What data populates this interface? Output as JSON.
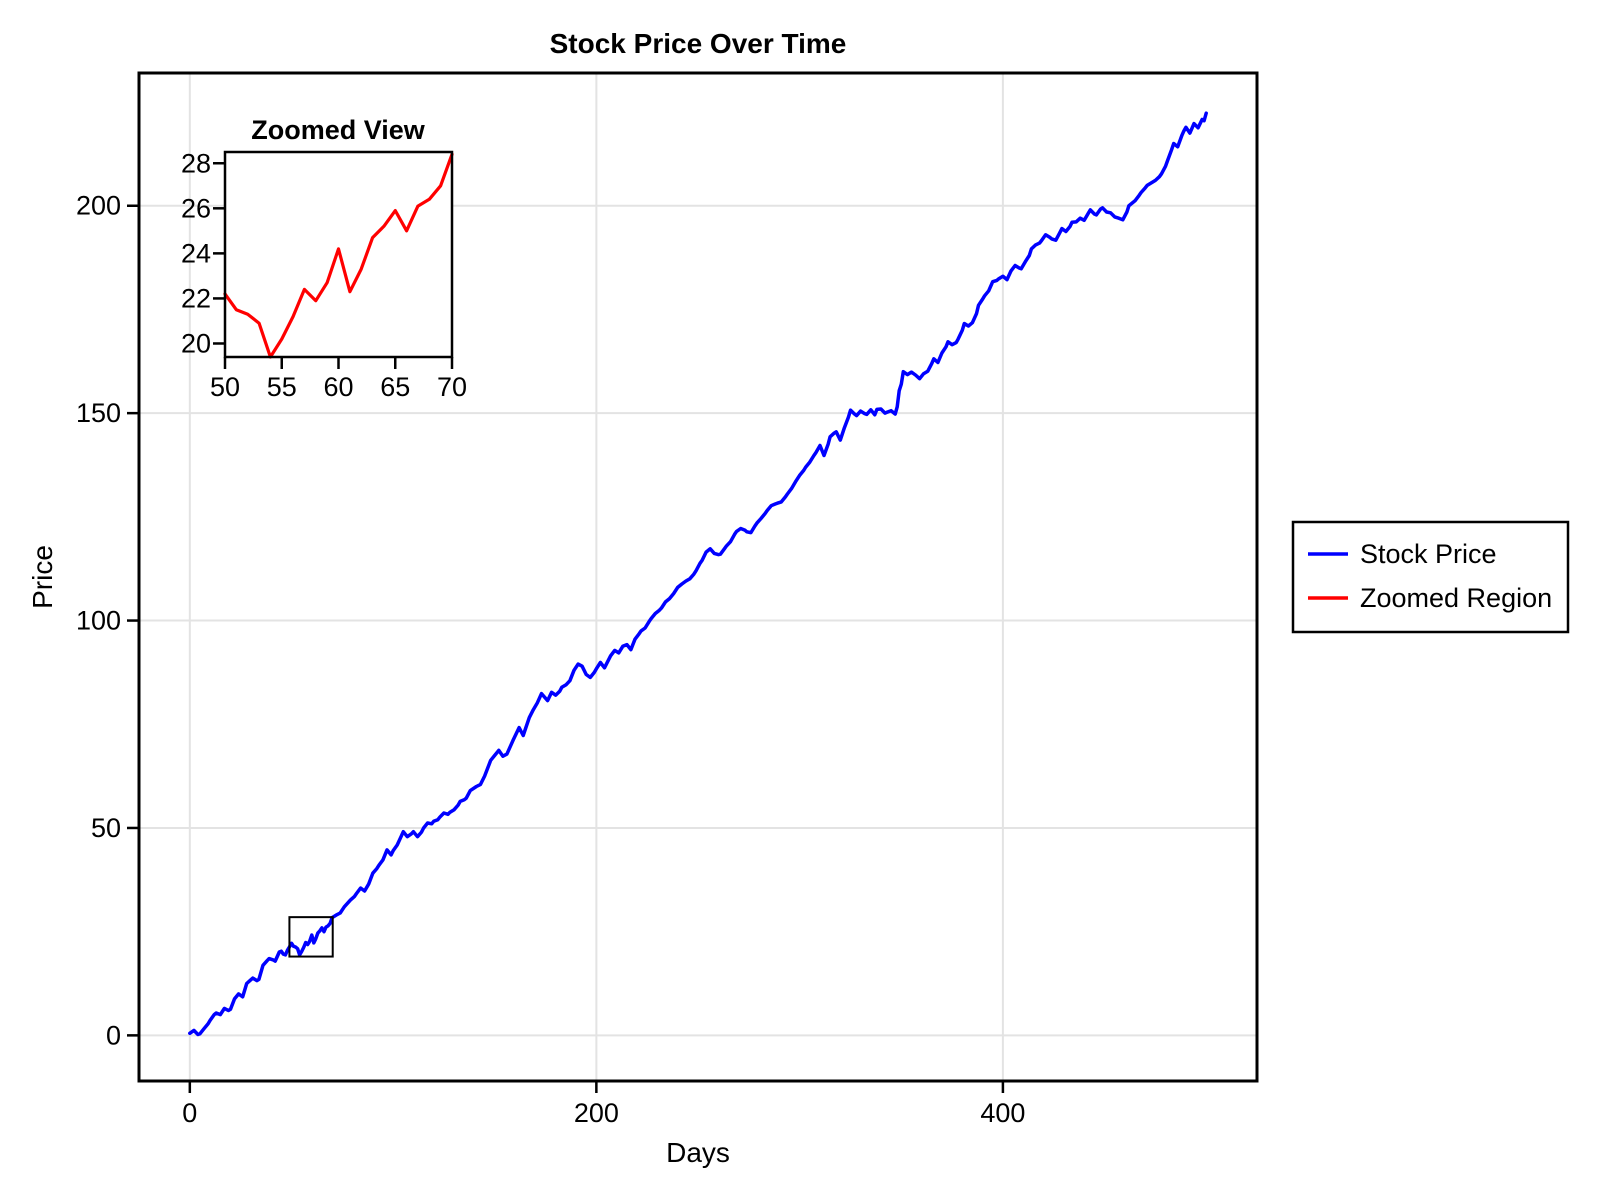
{
  "page": {
    "background": "#ffffff"
  },
  "colors": {
    "stock_line": "#0000ff",
    "zoom_line": "#ff0000",
    "grid": "#e3e3e3",
    "axis": "#000000",
    "inset_background": "#ffffff"
  },
  "legend": {
    "position": "outside-right",
    "items": [
      {
        "label": "Stock Price",
        "color": "#0000ff"
      },
      {
        "label": "Zoomed Region",
        "color": "#ff0000"
      }
    ]
  },
  "chart_data": {
    "main": {
      "type": "line",
      "title": "Stock Price Over Time",
      "xlabel": "Days",
      "ylabel": "Price",
      "xlim": [
        -25,
        525
      ],
      "ylim": [
        -11,
        232
      ],
      "xticks": [
        0,
        200,
        400
      ],
      "yticks": [
        0,
        50,
        100,
        150,
        200
      ],
      "grid": true,
      "zoom_box": {
        "x0": 49,
        "x1": 70.3,
        "y0": 19.0,
        "y1": 28.5
      },
      "series": [
        {
          "name": "Stock Price",
          "color": "#0000ff",
          "x": [
            0,
            2,
            4,
            5,
            7,
            9,
            10,
            12,
            13,
            15,
            17,
            19,
            20,
            22,
            24,
            26,
            28,
            30,
            31,
            33,
            34,
            36,
            38,
            39,
            41,
            42,
            44,
            45,
            46,
            47,
            48,
            49,
            50,
            51,
            52,
            53,
            54,
            55,
            56,
            57,
            58,
            59,
            60,
            61,
            62,
            63,
            64,
            65,
            66,
            67,
            68,
            69,
            70,
            72,
            74,
            76,
            79,
            81,
            82,
            84,
            86,
            88,
            90,
            92,
            93,
            95,
            97,
            99,
            100,
            102,
            104,
            105,
            107,
            109,
            110,
            112,
            114,
            115,
            117,
            119,
            120,
            122,
            123,
            125,
            127,
            128,
            130,
            132,
            133,
            135,
            136,
            138,
            141,
            143,
            145,
            148,
            150,
            152,
            154,
            156,
            159,
            162,
            164,
            167,
            169,
            171,
            173,
            176,
            178,
            180,
            182,
            183,
            185,
            187,
            189,
            191,
            193,
            195,
            197,
            199,
            200,
            202,
            204,
            207,
            209,
            211,
            213,
            215,
            217,
            219,
            221,
            222,
            224,
            226,
            227,
            229,
            231,
            232,
            234,
            236,
            238,
            240,
            242,
            244,
            246,
            248,
            249,
            251,
            252,
            254,
            256,
            258,
            260,
            261,
            263,
            264,
            266,
            268,
            269,
            271,
            273,
            274,
            276,
            278,
            279,
            281,
            283,
            284,
            286,
            288,
            289,
            291,
            293,
            294,
            296,
            298,
            300,
            302,
            303,
            305,
            307,
            308,
            310,
            312,
            314,
            315,
            317,
            318,
            320,
            322,
            324,
            325,
            327,
            328,
            330,
            332,
            333,
            335,
            337,
            338,
            340,
            342,
            343,
            345,
            347,
            348,
            349,
            350,
            351,
            353,
            355,
            357,
            359,
            361,
            363,
            365,
            366,
            368,
            370,
            372,
            373,
            375,
            377,
            378,
            380,
            381,
            383,
            385,
            387,
            388,
            390,
            391,
            393,
            395,
            397,
            398,
            400,
            402,
            404,
            406,
            408,
            409,
            411,
            413,
            414,
            416,
            418,
            419,
            421,
            423,
            424,
            426,
            428,
            429,
            431,
            433,
            434,
            436,
            438,
            440,
            442,
            443,
            445,
            446,
            448,
            449,
            451,
            453,
            455,
            457,
            459,
            461,
            462,
            464,
            465,
            467,
            468,
            470,
            471,
            473,
            475,
            477,
            478,
            480,
            481,
            483,
            484,
            486,
            488,
            489,
            490,
            492,
            494,
            496,
            498,
            499,
            500
          ],
          "y": [
            0.5,
            1.2,
            0.2,
            0.4,
            1.6,
            2.8,
            3.6,
            5.0,
            5.4,
            5.0,
            6.5,
            6.0,
            6.3,
            8.8,
            10.0,
            9.3,
            12.5,
            13.4,
            13.8,
            13.2,
            13.5,
            16.9,
            18.0,
            18.5,
            18.2,
            17.9,
            20.1,
            20.3,
            19.6,
            19.4,
            20.5,
            21.3,
            22.2,
            21.5,
            21.3,
            20.9,
            19.4,
            20.2,
            21.2,
            22.4,
            21.9,
            22.7,
            24.2,
            22.3,
            23.3,
            24.7,
            25.2,
            25.9,
            25.0,
            26.1,
            26.4,
            27.0,
            28.4,
            29.0,
            29.5,
            31.0,
            32.6,
            33.5,
            34.2,
            35.5,
            34.8,
            36.5,
            39.1,
            40.2,
            41.0,
            42.3,
            44.7,
            43.5,
            44.5,
            45.9,
            48.0,
            49.1,
            47.9,
            48.6,
            49.1,
            47.9,
            49.0,
            50.0,
            51.2,
            51.0,
            51.6,
            52.0,
            52.6,
            53.6,
            53.3,
            53.8,
            54.4,
            55.5,
            56.4,
            56.8,
            57.2,
            59.0,
            60.0,
            60.5,
            62.5,
            66.3,
            67.5,
            68.7,
            67.3,
            67.8,
            71.1,
            74.2,
            72.3,
            76.6,
            78.5,
            80.2,
            82.4,
            80.7,
            82.7,
            82.0,
            83.0,
            83.9,
            84.5,
            85.5,
            88.0,
            89.5,
            89.0,
            87.0,
            86.3,
            87.5,
            88.4,
            89.9,
            88.6,
            91.5,
            92.8,
            92.2,
            93.8,
            94.2,
            93.0,
            95.5,
            96.8,
            97.5,
            98.2,
            99.8,
            100.5,
            101.7,
            102.5,
            103.0,
            104.5,
            105.3,
            106.5,
            108.0,
            108.8,
            109.5,
            110.1,
            111.2,
            112.0,
            113.8,
            114.5,
            116.5,
            117.3,
            116.2,
            115.9,
            116.0,
            117.3,
            118.0,
            119.0,
            120.8,
            121.5,
            122.2,
            121.8,
            121.4,
            121.2,
            122.8,
            123.5,
            124.6,
            125.8,
            126.5,
            127.7,
            128.1,
            128.3,
            128.6,
            129.8,
            130.5,
            131.8,
            133.5,
            135.0,
            136.2,
            137.0,
            138.2,
            139.8,
            140.5,
            142.2,
            139.8,
            142.5,
            144.3,
            145.2,
            145.5,
            143.5,
            146.5,
            149.0,
            150.7,
            149.8,
            149.4,
            150.5,
            149.9,
            149.7,
            150.8,
            149.6,
            150.9,
            151.0,
            150.0,
            150.2,
            150.6,
            149.8,
            151.5,
            155.4,
            157.0,
            160.0,
            159.3,
            159.9,
            159.2,
            158.3,
            159.5,
            160.1,
            162.0,
            163.1,
            162.2,
            164.5,
            166.0,
            167.2,
            166.5,
            167.0,
            167.9,
            170.0,
            171.6,
            171.0,
            171.8,
            174.0,
            176.0,
            177.5,
            178.3,
            179.5,
            181.7,
            182.0,
            182.4,
            183.0,
            182.2,
            184.3,
            185.6,
            185.0,
            184.8,
            186.5,
            188.0,
            189.6,
            190.5,
            191.0,
            191.6,
            193.0,
            192.4,
            192.0,
            191.7,
            193.5,
            194.5,
            193.8,
            195.0,
            196.0,
            196.1,
            197.0,
            196.5,
            198.2,
            199.0,
            198.0,
            197.8,
            199.2,
            199.5,
            198.5,
            198.3,
            197.3,
            197.0,
            196.6,
            198.5,
            200.0,
            200.8,
            201.2,
            202.5,
            203.2,
            204.3,
            204.9,
            205.5,
            206.1,
            207.0,
            207.7,
            209.5,
            210.9,
            213.5,
            215.0,
            214.2,
            216.9,
            218.0,
            218.9,
            217.5,
            219.8,
            218.8,
            220.8,
            220.5,
            222.3
          ]
        }
      ]
    },
    "inset": {
      "type": "line",
      "title": "Zoomed View",
      "xlim": [
        50,
        70
      ],
      "ylim": [
        19.4,
        28.5
      ],
      "xticks": [
        50,
        55,
        60,
        65,
        70
      ],
      "yticks": [
        20,
        22,
        24,
        26,
        28
      ],
      "grid": false,
      "series": [
        {
          "name": "Zoomed Region",
          "color": "#ff0000",
          "x": [
            50,
            51,
            52,
            53,
            54,
            55,
            56,
            57,
            58,
            59,
            60,
            61,
            62,
            63,
            64,
            65,
            66,
            67,
            68,
            69,
            70
          ],
          "y": [
            22.2,
            21.5,
            21.3,
            20.9,
            19.4,
            20.2,
            21.2,
            22.4,
            21.9,
            22.7,
            24.2,
            22.3,
            23.3,
            24.7,
            25.2,
            25.9,
            25.0,
            26.1,
            26.4,
            27.0,
            28.4
          ]
        }
      ]
    }
  }
}
